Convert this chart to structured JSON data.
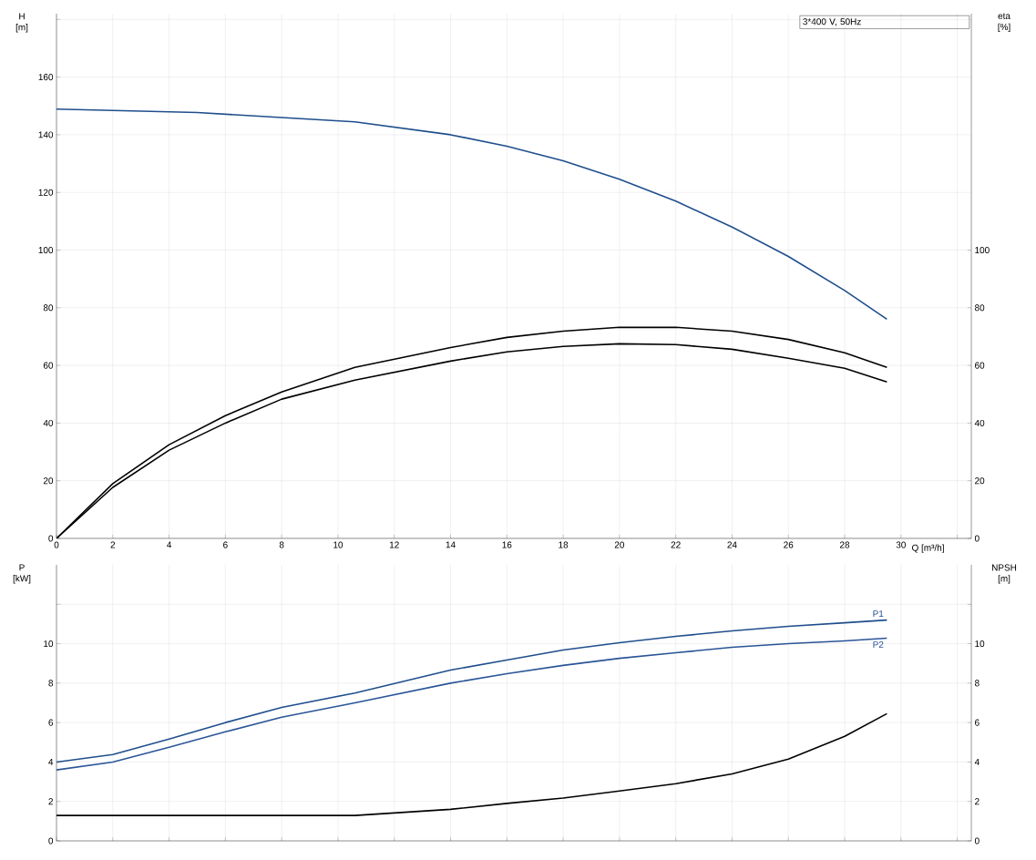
{
  "chart_data": [
    {
      "type": "line",
      "ylabel": "H [m]",
      "y2label": "eta [%]",
      "xlabel": "Q [m³/h]",
      "annotations": [
        "3*400 V, 50Hz"
      ],
      "xlim": [
        0,
        32.5
      ],
      "xticks": [
        0,
        2,
        4,
        6,
        8,
        10,
        12,
        14,
        16,
        18,
        20,
        22,
        24,
        26,
        28,
        30,
        {
          "value": 32,
          "label": null
        }
      ],
      "ylim": [
        0,
        182
      ],
      "yticks": [
        0,
        20,
        40,
        60,
        80,
        100,
        120,
        140,
        160,
        {
          "value": 180,
          "label": null
        }
      ],
      "y2lim": [
        0,
        182
      ],
      "y2ticks": [
        0,
        20,
        40,
        60,
        80,
        100
      ],
      "grid": true,
      "series": [
        {
          "color": "#1f4e8c",
          "x": [
            0,
            5,
            10.6,
            14,
            16,
            18,
            20,
            22,
            24,
            26,
            28,
            29.5
          ],
          "values": [
            148.9,
            147.7,
            144.5,
            140,
            136,
            131,
            124.6,
            117,
            108,
            97.8,
            86,
            76
          ]
        },
        {
          "color": "#000000",
          "axis": "y2",
          "x": [
            0,
            2,
            4,
            6,
            8,
            10.6,
            14,
            16,
            18,
            20,
            22,
            24,
            26,
            28,
            29.5
          ],
          "values": [
            0,
            19,
            32.5,
            42.6,
            50.8,
            59.3,
            66.2,
            69.7,
            71.9,
            73.2,
            73.2,
            71.9,
            69,
            64.4,
            59.3
          ]
        },
        {
          "color": "#000000",
          "axis": "y2",
          "x": [
            0,
            2,
            4,
            6,
            8,
            10.6,
            14,
            16,
            18,
            20,
            22,
            24,
            26,
            28,
            29.5
          ],
          "values": [
            0,
            17.7,
            30.6,
            40,
            48.3,
            54.9,
            61.5,
            64.7,
            66.6,
            67.5,
            67.2,
            65.6,
            62.5,
            59,
            54.3
          ]
        }
      ]
    },
    {
      "type": "line",
      "ylabel": "P [kW]",
      "y2label": "NPSH [m]",
      "xlim": [
        0,
        32.5
      ],
      "xticks": [
        0,
        2,
        4,
        6,
        8,
        10,
        12,
        14,
        16,
        18,
        20,
        22,
        24,
        26,
        28,
        30,
        32
      ],
      "ylim": [
        0,
        14
      ],
      "yticks": [
        0,
        2,
        4,
        6,
        8,
        10,
        {
          "value": 12,
          "label": null
        }
      ],
      "y2lim": [
        0,
        14
      ],
      "y2ticks": [
        0,
        2,
        4,
        6,
        8,
        10,
        {
          "value": 12,
          "label": null
        }
      ],
      "grid": true,
      "tick_labels": "y",
      "series": [
        {
          "name": "P1",
          "color": "#1f4e8c",
          "x": [
            0,
            2,
            4,
            6,
            8,
            10.6,
            14,
            16,
            18,
            20,
            22,
            24,
            26,
            28,
            29.5
          ],
          "values": [
            4.0,
            4.38,
            5.16,
            6.0,
            6.77,
            7.5,
            8.66,
            9.17,
            9.68,
            10.05,
            10.37,
            10.65,
            10.88,
            11.06,
            11.2
          ]
        },
        {
          "name": "P2",
          "color": "#2a5597",
          "x": [
            0,
            2,
            4,
            6,
            8,
            10.6,
            14,
            16,
            18,
            20,
            22,
            24,
            26,
            28,
            29.5
          ],
          "values": [
            3.6,
            4.0,
            4.75,
            5.53,
            6.27,
            7.0,
            8.0,
            8.48,
            8.9,
            9.26,
            9.54,
            9.82,
            10.0,
            10.14,
            10.28
          ]
        },
        {
          "color": "#000000",
          "axis": "y2",
          "x": [
            0,
            10.6,
            14,
            16,
            18,
            20,
            22,
            24,
            26,
            28,
            29.5
          ],
          "values": [
            1.29,
            1.29,
            1.6,
            1.9,
            2.17,
            2.53,
            2.9,
            3.4,
            4.15,
            5.3,
            6.45
          ]
        }
      ]
    }
  ]
}
